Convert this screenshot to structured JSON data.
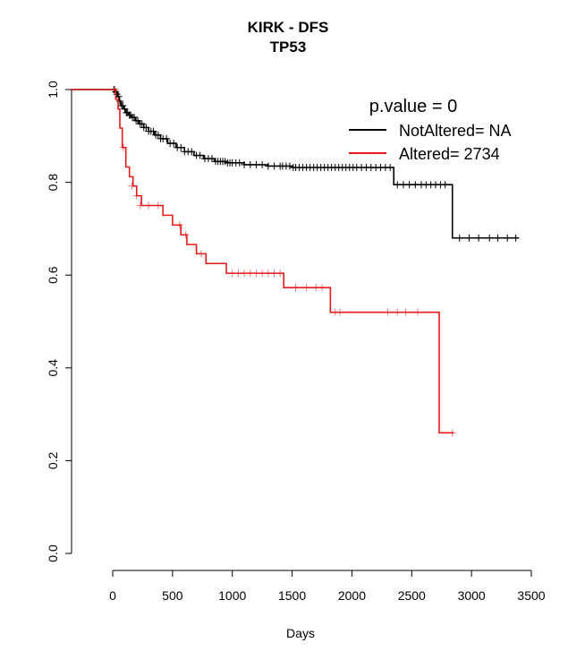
{
  "chart_data": {
    "type": "line",
    "title": "KIRK - DFS",
    "subtitle": "TP53",
    "xlabel": "Days",
    "ylabel": "",
    "xlim": [
      -350,
      3500
    ],
    "ylim": [
      0,
      1
    ],
    "xticks": [
      0,
      500,
      1000,
      1500,
      2000,
      2500,
      3000,
      3500
    ],
    "yticks": [
      0.0,
      0.2,
      0.4,
      0.6,
      0.8,
      1.0
    ],
    "xtick_labels": [
      "0",
      "500",
      "1000",
      "1500",
      "2000",
      "2500",
      "3000",
      "3500"
    ],
    "ytick_labels": [
      "0.0",
      "0.2",
      "0.4",
      "0.6",
      "0.8",
      "1.0"
    ],
    "grid": false,
    "legend": {
      "title": "p.value = 0",
      "placement": "top-right",
      "entries": [
        "NotAltered= NA",
        "Altered= 2734"
      ]
    },
    "series": [
      {
        "name": "NotAltered= NA",
        "color": "#000000",
        "step_x": [
          -350,
          20,
          40,
          55,
          70,
          90,
          110,
          135,
          160,
          190,
          220,
          260,
          300,
          350,
          400,
          460,
          530,
          600,
          680,
          760,
          850,
          950,
          1100,
          1300,
          1500,
          2350,
          2840,
          3390
        ],
        "step_y": [
          1.0,
          0.995,
          0.985,
          0.975,
          0.965,
          0.958,
          0.95,
          0.945,
          0.94,
          0.933,
          0.926,
          0.918,
          0.91,
          0.902,
          0.894,
          0.884,
          0.875,
          0.866,
          0.858,
          0.851,
          0.845,
          0.842,
          0.838,
          0.835,
          0.832,
          0.795,
          0.68,
          0.68
        ],
        "censor_x": [
          10,
          25,
          35,
          50,
          60,
          75,
          85,
          100,
          115,
          125,
          140,
          150,
          165,
          180,
          195,
          210,
          230,
          245,
          260,
          280,
          300,
          320,
          340,
          360,
          380,
          400,
          420,
          450,
          480,
          510,
          540,
          570,
          600,
          630,
          660,
          700,
          730,
          770,
          800,
          830,
          860,
          880,
          900,
          920,
          940,
          960,
          980,
          1000,
          1030,
          1060,
          1100,
          1150,
          1200,
          1250,
          1300,
          1350,
          1400,
          1420,
          1450,
          1480,
          1510,
          1530,
          1560,
          1590,
          1620,
          1650,
          1680,
          1710,
          1740,
          1770,
          1800,
          1830,
          1860,
          1890,
          1920,
          1950,
          1980,
          2010,
          2040,
          2080,
          2120,
          2160,
          2200,
          2240,
          2280,
          2320,
          2380,
          2430,
          2480,
          2530,
          2580,
          2620,
          2660,
          2700,
          2740,
          2780,
          2900,
          2980,
          3060,
          3150,
          3220,
          3300,
          3370
        ],
        "censor_y": [
          1.0,
          0.995,
          0.99,
          0.985,
          0.975,
          0.965,
          0.965,
          0.958,
          0.95,
          0.95,
          0.945,
          0.945,
          0.94,
          0.94,
          0.933,
          0.933,
          0.926,
          0.926,
          0.918,
          0.918,
          0.91,
          0.91,
          0.91,
          0.902,
          0.902,
          0.894,
          0.894,
          0.894,
          0.884,
          0.884,
          0.875,
          0.875,
          0.866,
          0.866,
          0.866,
          0.858,
          0.858,
          0.851,
          0.851,
          0.851,
          0.845,
          0.845,
          0.845,
          0.845,
          0.845,
          0.842,
          0.842,
          0.842,
          0.842,
          0.842,
          0.838,
          0.838,
          0.838,
          0.838,
          0.835,
          0.835,
          0.835,
          0.835,
          0.835,
          0.835,
          0.832,
          0.832,
          0.832,
          0.832,
          0.832,
          0.832,
          0.832,
          0.832,
          0.832,
          0.832,
          0.832,
          0.832,
          0.832,
          0.832,
          0.832,
          0.832,
          0.832,
          0.832,
          0.832,
          0.832,
          0.832,
          0.832,
          0.832,
          0.832,
          0.832,
          0.832,
          0.795,
          0.795,
          0.795,
          0.795,
          0.795,
          0.795,
          0.795,
          0.795,
          0.795,
          0.795,
          0.68,
          0.68,
          0.68,
          0.68,
          0.68,
          0.68,
          0.68
        ]
      },
      {
        "name": "Altered= 2734",
        "color": "#e41a1c",
        "step_x": [
          -350,
          25,
          45,
          60,
          80,
          110,
          140,
          170,
          200,
          240,
          270,
          420,
          500,
          570,
          620,
          700,
          780,
          950,
          1430,
          1820,
          2730,
          2850
        ],
        "step_y": [
          1.0,
          0.979,
          0.958,
          0.917,
          0.875,
          0.833,
          0.812,
          0.792,
          0.771,
          0.75,
          0.75,
          0.729,
          0.708,
          0.687,
          0.666,
          0.646,
          0.625,
          0.604,
          0.573,
          0.52,
          0.26,
          0.26
        ],
        "censor_x": [
          20,
          90,
          160,
          200,
          230,
          300,
          380,
          560,
          610,
          740,
          1000,
          1050,
          1100,
          1150,
          1200,
          1250,
          1300,
          1350,
          1400,
          1530,
          1620,
          1700,
          1750,
          1860,
          1900,
          2300,
          2380,
          2450,
          2550,
          2840
        ],
        "censor_y": [
          1.0,
          0.875,
          0.792,
          0.771,
          0.75,
          0.75,
          0.75,
          0.708,
          0.687,
          0.646,
          0.604,
          0.604,
          0.604,
          0.604,
          0.604,
          0.604,
          0.604,
          0.604,
          0.604,
          0.573,
          0.573,
          0.573,
          0.573,
          0.52,
          0.52,
          0.52,
          0.52,
          0.52,
          0.52,
          0.26
        ]
      }
    ]
  }
}
